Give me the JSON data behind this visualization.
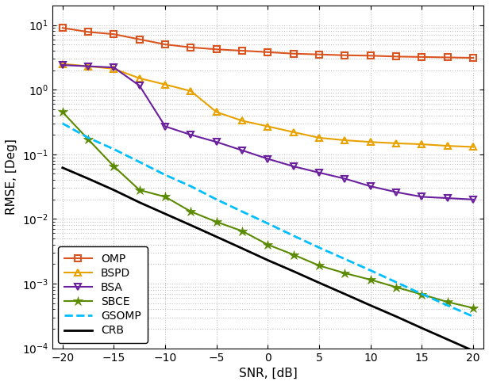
{
  "snr": [
    -20,
    -17.5,
    -15,
    -12.5,
    -10,
    -7.5,
    -5,
    -2.5,
    0,
    2.5,
    5,
    7.5,
    10,
    12.5,
    15,
    17.5,
    20
  ],
  "OMP": [
    9.0,
    7.8,
    7.2,
    6.0,
    5.0,
    4.5,
    4.2,
    4.0,
    3.8,
    3.6,
    3.5,
    3.4,
    3.35,
    3.25,
    3.2,
    3.15,
    3.1
  ],
  "BSPD": [
    2.5,
    2.3,
    2.1,
    1.5,
    1.2,
    0.95,
    0.45,
    0.33,
    0.27,
    0.22,
    0.18,
    0.165,
    0.155,
    0.148,
    0.143,
    0.135,
    0.13
  ],
  "BSA": [
    2.4,
    2.3,
    2.2,
    1.15,
    0.27,
    0.2,
    0.155,
    0.115,
    0.085,
    0.065,
    0.052,
    0.042,
    0.032,
    0.026,
    0.022,
    0.021,
    0.02
  ],
  "SBCE": [
    0.45,
    0.17,
    0.065,
    0.028,
    0.022,
    0.013,
    0.009,
    0.0065,
    0.004,
    0.0028,
    0.0019,
    0.00145,
    0.00115,
    0.00088,
    0.00068,
    0.00052,
    0.00042
  ],
  "GSOMP": [
    0.3,
    0.18,
    0.12,
    0.076,
    0.048,
    0.032,
    0.02,
    0.013,
    0.0085,
    0.0055,
    0.0036,
    0.0024,
    0.0016,
    0.00105,
    0.00069,
    0.00046,
    0.00031
  ],
  "CRB": [
    0.062,
    0.042,
    0.028,
    0.018,
    0.012,
    0.008,
    0.0053,
    0.0035,
    0.0023,
    0.00155,
    0.00103,
    0.00069,
    0.00046,
    0.00031,
    0.000205,
    0.000137,
    9.15e-05
  ],
  "colors": {
    "OMP": "#d9541e",
    "BSPD": "#e8a200",
    "BSA": "#6a1f9e",
    "SBCE": "#5a8a00",
    "GSOMP": "#00bfff",
    "CRB": "#000000"
  },
  "xlabel": "SNR, [dB]",
  "ylabel": "RMSE, [Deg]",
  "ylim": [
    0.0001,
    20
  ],
  "xlim": [
    -21,
    21
  ],
  "xticks": [
    -20,
    -15,
    -10,
    -5,
    0,
    5,
    10,
    15,
    20
  ]
}
